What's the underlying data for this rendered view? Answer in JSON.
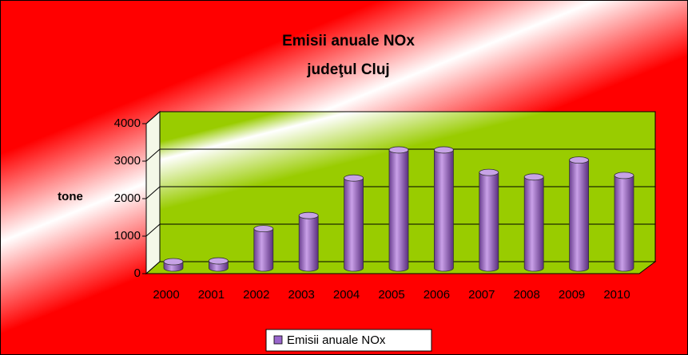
{
  "chart_data": {
    "type": "bar",
    "title": "Emisii anuale NOx",
    "subtitle": "judeţul Cluj",
    "y_label": "tone",
    "categories": [
      "2000",
      "2001",
      "2002",
      "2003",
      "2004",
      "2005",
      "2006",
      "2007",
      "2008",
      "2009",
      "2010"
    ],
    "series": [
      {
        "name": "Emisii anuale NOx",
        "color": "#9966cc",
        "values": [
          170,
          190,
          1050,
          1400,
          2400,
          3150,
          3150,
          2550,
          2430,
          2880,
          2470
        ]
      }
    ],
    "ylim": [
      0,
      4000
    ],
    "yticks": [
      0,
      1000,
      2000,
      3000,
      4000
    ],
    "grid": true,
    "legend": "bottom"
  }
}
